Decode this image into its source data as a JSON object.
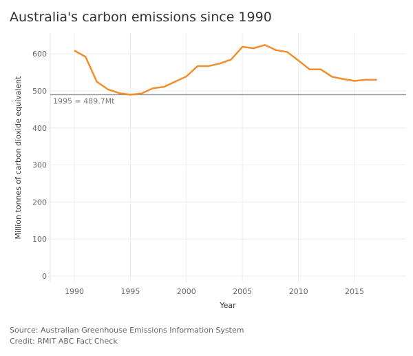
{
  "chart_data": {
    "type": "line",
    "title": "Australia's carbon emissions since 1990",
    "xlabel": "Year",
    "ylabel": "Million tonnes of carbon dioxide equivalent",
    "xlim": [
      1988,
      2019.5
    ],
    "ylim": [
      0,
      650
    ],
    "xticks": [
      1990,
      1995,
      2000,
      2005,
      2010,
      2015
    ],
    "yticks": [
      0,
      100,
      200,
      300,
      400,
      500,
      600
    ],
    "grid": true,
    "line_color": "#f28e2b",
    "x": [
      1990,
      1991,
      1992,
      1993,
      1994,
      1995,
      1996,
      1997,
      1998,
      1999,
      2000,
      2001,
      2002,
      2003,
      2004,
      2005,
      2006,
      2007,
      2008,
      2009,
      2010,
      2011,
      2012,
      2013,
      2014,
      2015,
      2016,
      2017
    ],
    "values": [
      609,
      592,
      525,
      504,
      494,
      489.7,
      493,
      507,
      511,
      525,
      539,
      567,
      567,
      574,
      585,
      619,
      615,
      624,
      610,
      605,
      582,
      558,
      558,
      538,
      532,
      527,
      530,
      530
    ],
    "reference_line": {
      "value": 489.7,
      "label": "1995 = 489.7Mt",
      "color": "#999999"
    }
  },
  "footer": {
    "source": "Source: Australian Greenhouse Emissions Information System",
    "credit": "Credit: RMIT ABC Fact Check"
  }
}
